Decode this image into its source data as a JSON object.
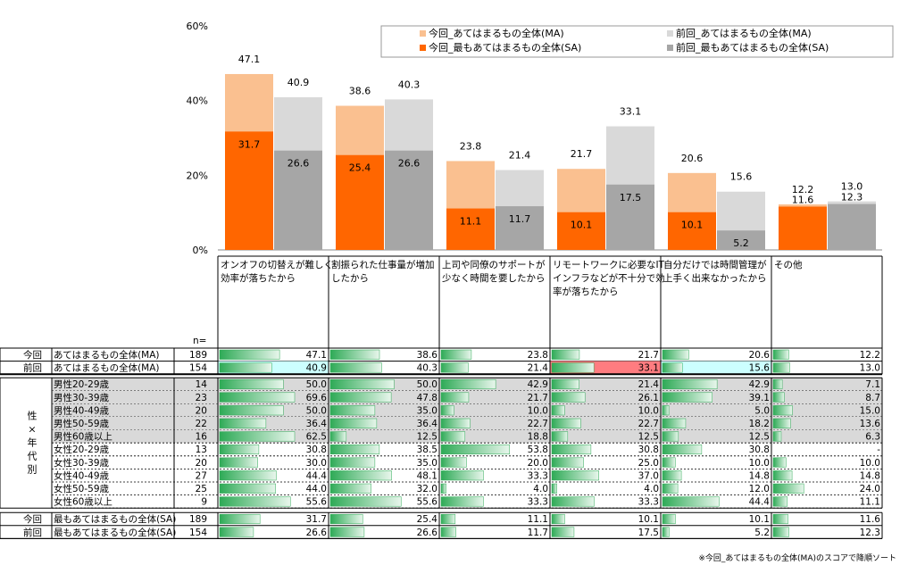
{
  "chart_data": {
    "type": "bar",
    "ylim": [
      0,
      60
    ],
    "yticks": [
      "0%",
      "20%",
      "40%",
      "60%"
    ],
    "categories": [
      [
        "オンオフの切替えが難しく",
        "効率が落ちたから"
      ],
      [
        "割振られた仕事量が増加",
        "したから"
      ],
      [
        "上司や同僚のサポートが",
        "少なく時間を要したから"
      ],
      [
        "リモートワークに必要なIT",
        "インフラなどが不十分で効",
        "率が落ちたから"
      ],
      [
        "自分だけでは時間管理が",
        "上手く出来なかったから"
      ],
      [
        "その他"
      ]
    ],
    "series": [
      {
        "name": "今回_あてはまるもの全体(MA)",
        "color": "#FAC090",
        "values": [
          47.1,
          38.6,
          23.8,
          21.7,
          20.6,
          12.2
        ]
      },
      {
        "name": "前回_あてはまるもの全体(MA)",
        "color": "#D9D9D9",
        "values": [
          40.9,
          40.3,
          21.4,
          33.1,
          15.6,
          13.0
        ]
      },
      {
        "name": "今回_最もあてはまるもの全体(SA)",
        "color": "#FF6600",
        "values": [
          31.7,
          25.4,
          11.1,
          10.1,
          10.1,
          11.6
        ]
      },
      {
        "name": "前回_最もあてはまるもの全体(SA)",
        "color": "#A6A6A6",
        "values": [
          26.6,
          26.6,
          11.7,
          17.5,
          5.2,
          12.3
        ]
      }
    ],
    "bar_labels": {
      "ma_now": [
        "47.1",
        "38.6",
        "23.8",
        "21.7",
        "20.6",
        "12.2"
      ],
      "ma_prev": [
        "40.9",
        "40.3",
        "21.4",
        "33.1",
        "15.6",
        "13.0"
      ],
      "sa_now": [
        "31.7",
        "25.4",
        "11.1",
        "10.1",
        "10.1",
        "11.6"
      ],
      "sa_prev": [
        "26.6",
        "26.6",
        "11.7",
        "17.5",
        "5.2",
        "12.3"
      ]
    },
    "table": {
      "n_label": "n=",
      "rows": [
        {
          "period": "今回",
          "label": "あてはまるもの全体(MA)",
          "n": 189,
          "values": [
            "47.1",
            "38.6",
            "23.8",
            "21.7",
            "20.6",
            "12.2"
          ],
          "group": "top"
        },
        {
          "period": "前回",
          "label": "あてはまるもの全体(MA)",
          "n": 154,
          "values": [
            "40.9",
            "40.3",
            "21.4",
            "33.1",
            "15.6",
            "13.0"
          ],
          "group": "top",
          "highlight": {
            "0": "#CCFFFF",
            "3": "#FF7C80",
            "4": "#CCFFFF"
          }
        },
        {
          "label": "男性20-29歳",
          "n": 14,
          "values": [
            "50.0",
            "50.0",
            "42.9",
            "21.4",
            "42.9",
            "7.1"
          ],
          "group": "mid",
          "shade": true
        },
        {
          "label": "男性30-39歳",
          "n": 23,
          "values": [
            "69.6",
            "47.8",
            "21.7",
            "26.1",
            "39.1",
            "8.7"
          ],
          "group": "mid",
          "shade": true
        },
        {
          "label": "男性40-49歳",
          "n": 20,
          "values": [
            "50.0",
            "35.0",
            "10.0",
            "10.0",
            "5.0",
            "15.0"
          ],
          "group": "mid",
          "shade": true
        },
        {
          "label": "男性50-59歳",
          "n": 22,
          "values": [
            "36.4",
            "36.4",
            "22.7",
            "22.7",
            "18.2",
            "13.6"
          ],
          "group": "mid",
          "shade": true
        },
        {
          "label": "男性60歳以上",
          "n": 16,
          "values": [
            "62.5",
            "12.5",
            "18.8",
            "12.5",
            "12.5",
            "6.3"
          ],
          "group": "mid",
          "shade": true
        },
        {
          "label": "女性20-29歳",
          "n": 13,
          "values": [
            "30.8",
            "38.5",
            "53.8",
            "30.8",
            "30.8",
            "-"
          ],
          "group": "mid"
        },
        {
          "label": "女性30-39歳",
          "n": 20,
          "values": [
            "30.0",
            "35.0",
            "20.0",
            "25.0",
            "10.0",
            "10.0"
          ],
          "group": "mid"
        },
        {
          "label": "女性40-49歳",
          "n": 27,
          "values": [
            "44.4",
            "48.1",
            "33.3",
            "37.0",
            "14.8",
            "14.8"
          ],
          "group": "mid"
        },
        {
          "label": "女性50-59歳",
          "n": 25,
          "values": [
            "44.0",
            "32.0",
            "4.0",
            "4.0",
            "12.0",
            "24.0"
          ],
          "group": "mid"
        },
        {
          "label": "女性60歳以上",
          "n": 9,
          "values": [
            "55.6",
            "55.6",
            "33.3",
            "33.3",
            "44.4",
            "11.1"
          ],
          "group": "mid"
        },
        {
          "period": "今回",
          "label": "最もあてはまるもの全体(SA)",
          "n": 189,
          "values": [
            "31.7",
            "25.4",
            "11.1",
            "10.1",
            "10.1",
            "11.6"
          ],
          "group": "bottom"
        },
        {
          "period": "前回",
          "label": "最もあてはまるもの全体(SA)",
          "n": 154,
          "values": [
            "26.6",
            "26.6",
            "11.7",
            "17.5",
            "5.2",
            "12.3"
          ],
          "group": "bottom"
        }
      ],
      "group_label": [
        "性",
        "×",
        "年",
        "代",
        "別"
      ]
    },
    "footnote": "※今回_あてはまるもの全体(MA)のスコアで降順ソート"
  },
  "colors": {
    "bar_gradient_start": "#2EAA56",
    "bar_gradient_end": "#E8F6EC",
    "shade": "#D9D9D9"
  }
}
